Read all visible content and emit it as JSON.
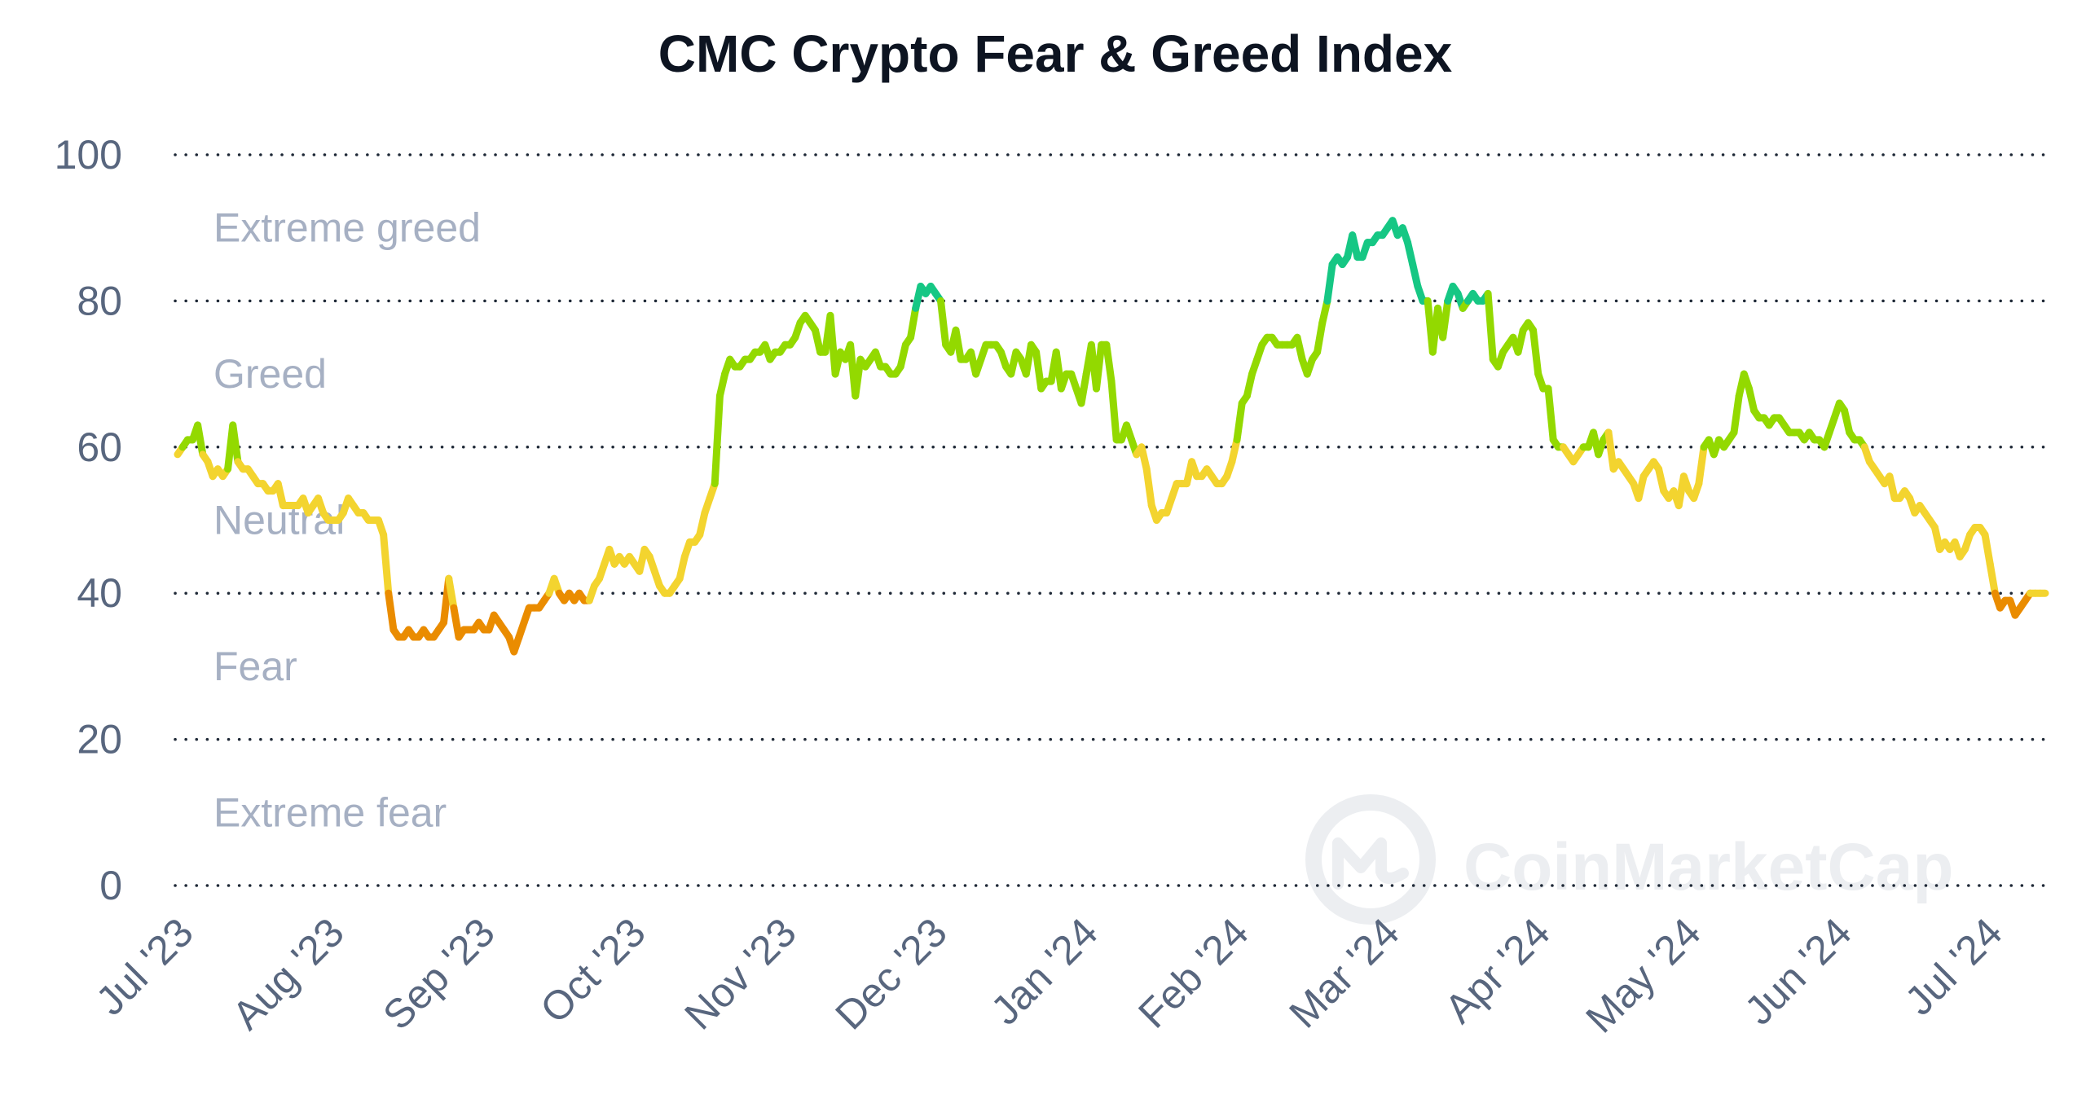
{
  "chart_data": {
    "type": "line",
    "title": "CMC Crypto Fear & Greed Index",
    "xlabel": "",
    "ylabel": "",
    "ylim": [
      0,
      100
    ],
    "y_ticks": [
      "100",
      "80",
      "60",
      "40",
      "20",
      "0"
    ],
    "grid": "horizontal-dotted",
    "x_ticks": [
      "Jul '23",
      "Aug '23",
      "Sep '23",
      "Oct '23",
      "Nov '23",
      "Dec '23",
      "Jan '24",
      "Feb '24",
      "Mar '24",
      "Apr '24",
      "May '24",
      "Jun '24",
      "Jul '24"
    ],
    "zones": [
      {
        "label": "Extreme greed",
        "min": 80,
        "max": 100,
        "color": "#16c784"
      },
      {
        "label": "Greed",
        "min": 60,
        "max": 80,
        "color": "#93d900"
      },
      {
        "label": "Neutral",
        "min": 40,
        "max": 60,
        "color": "#f3d42f"
      },
      {
        "label": "Fear",
        "min": 20,
        "max": 40,
        "color": "#ea8c00"
      },
      {
        "label": "Extreme fear",
        "min": 0,
        "max": 20,
        "color": "#ea3943"
      }
    ],
    "series": [
      {
        "values": [
          59,
          60,
          61,
          61,
          63,
          59,
          58,
          56,
          57,
          56,
          57,
          63,
          58,
          57,
          57,
          56,
          55,
          55,
          54,
          54,
          55,
          52,
          52,
          52,
          52,
          53,
          51,
          52,
          53,
          51,
          50,
          50,
          50,
          51,
          53,
          52,
          51,
          51,
          50,
          50,
          50,
          48,
          40,
          35,
          34,
          34,
          35,
          34,
          34,
          35,
          34,
          34,
          35,
          36,
          42,
          38,
          34,
          35,
          35,
          35,
          36,
          35,
          35,
          37,
          36,
          35,
          34,
          32,
          34,
          36,
          38,
          38,
          38,
          39,
          40,
          42,
          40,
          39,
          40,
          39,
          40,
          39,
          39,
          41,
          42,
          44,
          46,
          44,
          45,
          44,
          45,
          44,
          43,
          46,
          45,
          43,
          41,
          40,
          40,
          41,
          42,
          45,
          47,
          47,
          48,
          51,
          53,
          55,
          67,
          70,
          72,
          71,
          71,
          72,
          72,
          73,
          73,
          74,
          72,
          73,
          73,
          74,
          74,
          75,
          77,
          78,
          77,
          76,
          73,
          73,
          78,
          70,
          73,
          72,
          74,
          67,
          72,
          71,
          72,
          73,
          71,
          71,
          70,
          70,
          71,
          74,
          75,
          79,
          82,
          81,
          82,
          81,
          80,
          74,
          73,
          76,
          72,
          72,
          73,
          70,
          72,
          74,
          74,
          74,
          73,
          71,
          70,
          73,
          72,
          70,
          74,
          73,
          68,
          69,
          69,
          73,
          68,
          70,
          70,
          68,
          66,
          70,
          74,
          68,
          74,
          74,
          69,
          61,
          61,
          63,
          61,
          59,
          60,
          57,
          52,
          50,
          51,
          51,
          53,
          55,
          55,
          55,
          58,
          56,
          56,
          57,
          56,
          55,
          55,
          56,
          58,
          61,
          66,
          67,
          70,
          72,
          74,
          75,
          75,
          74,
          74,
          74,
          74,
          75,
          72,
          70,
          72,
          73,
          77,
          80,
          85,
          86,
          85,
          86,
          89,
          86,
          86,
          88,
          88,
          89,
          89,
          90,
          91,
          89,
          90,
          88,
          85,
          82,
          80,
          80,
          73,
          79,
          75,
          80,
          82,
          81,
          79,
          80,
          81,
          80,
          80,
          81,
          72,
          71,
          73,
          74,
          75,
          73,
          76,
          77,
          76,
          70,
          68,
          68,
          61,
          60,
          60,
          59,
          58,
          59,
          60,
          60,
          62,
          59,
          61,
          62,
          57,
          58,
          57,
          56,
          55,
          53,
          56,
          57,
          58,
          57,
          54,
          53,
          54,
          52,
          56,
          54,
          53,
          55,
          60,
          61,
          59,
          61,
          60,
          61,
          62,
          67,
          70,
          68,
          65,
          64,
          64,
          63,
          64,
          64,
          63,
          62,
          62,
          62,
          61,
          62,
          61,
          61,
          60,
          62,
          64,
          66,
          65,
          62,
          61,
          61,
          60,
          58,
          57,
          56,
          55,
          56,
          53,
          53,
          54,
          53,
          51,
          52,
          51,
          50,
          49,
          46,
          47,
          46,
          47,
          45,
          46,
          48,
          49,
          49,
          48,
          44,
          40,
          38,
          39,
          39,
          37,
          38,
          39,
          40,
          40,
          40,
          40
        ]
      }
    ]
  },
  "watermark": {
    "text": "CoinMarketCap",
    "logo": "coinmarketcap-logo-icon"
  }
}
